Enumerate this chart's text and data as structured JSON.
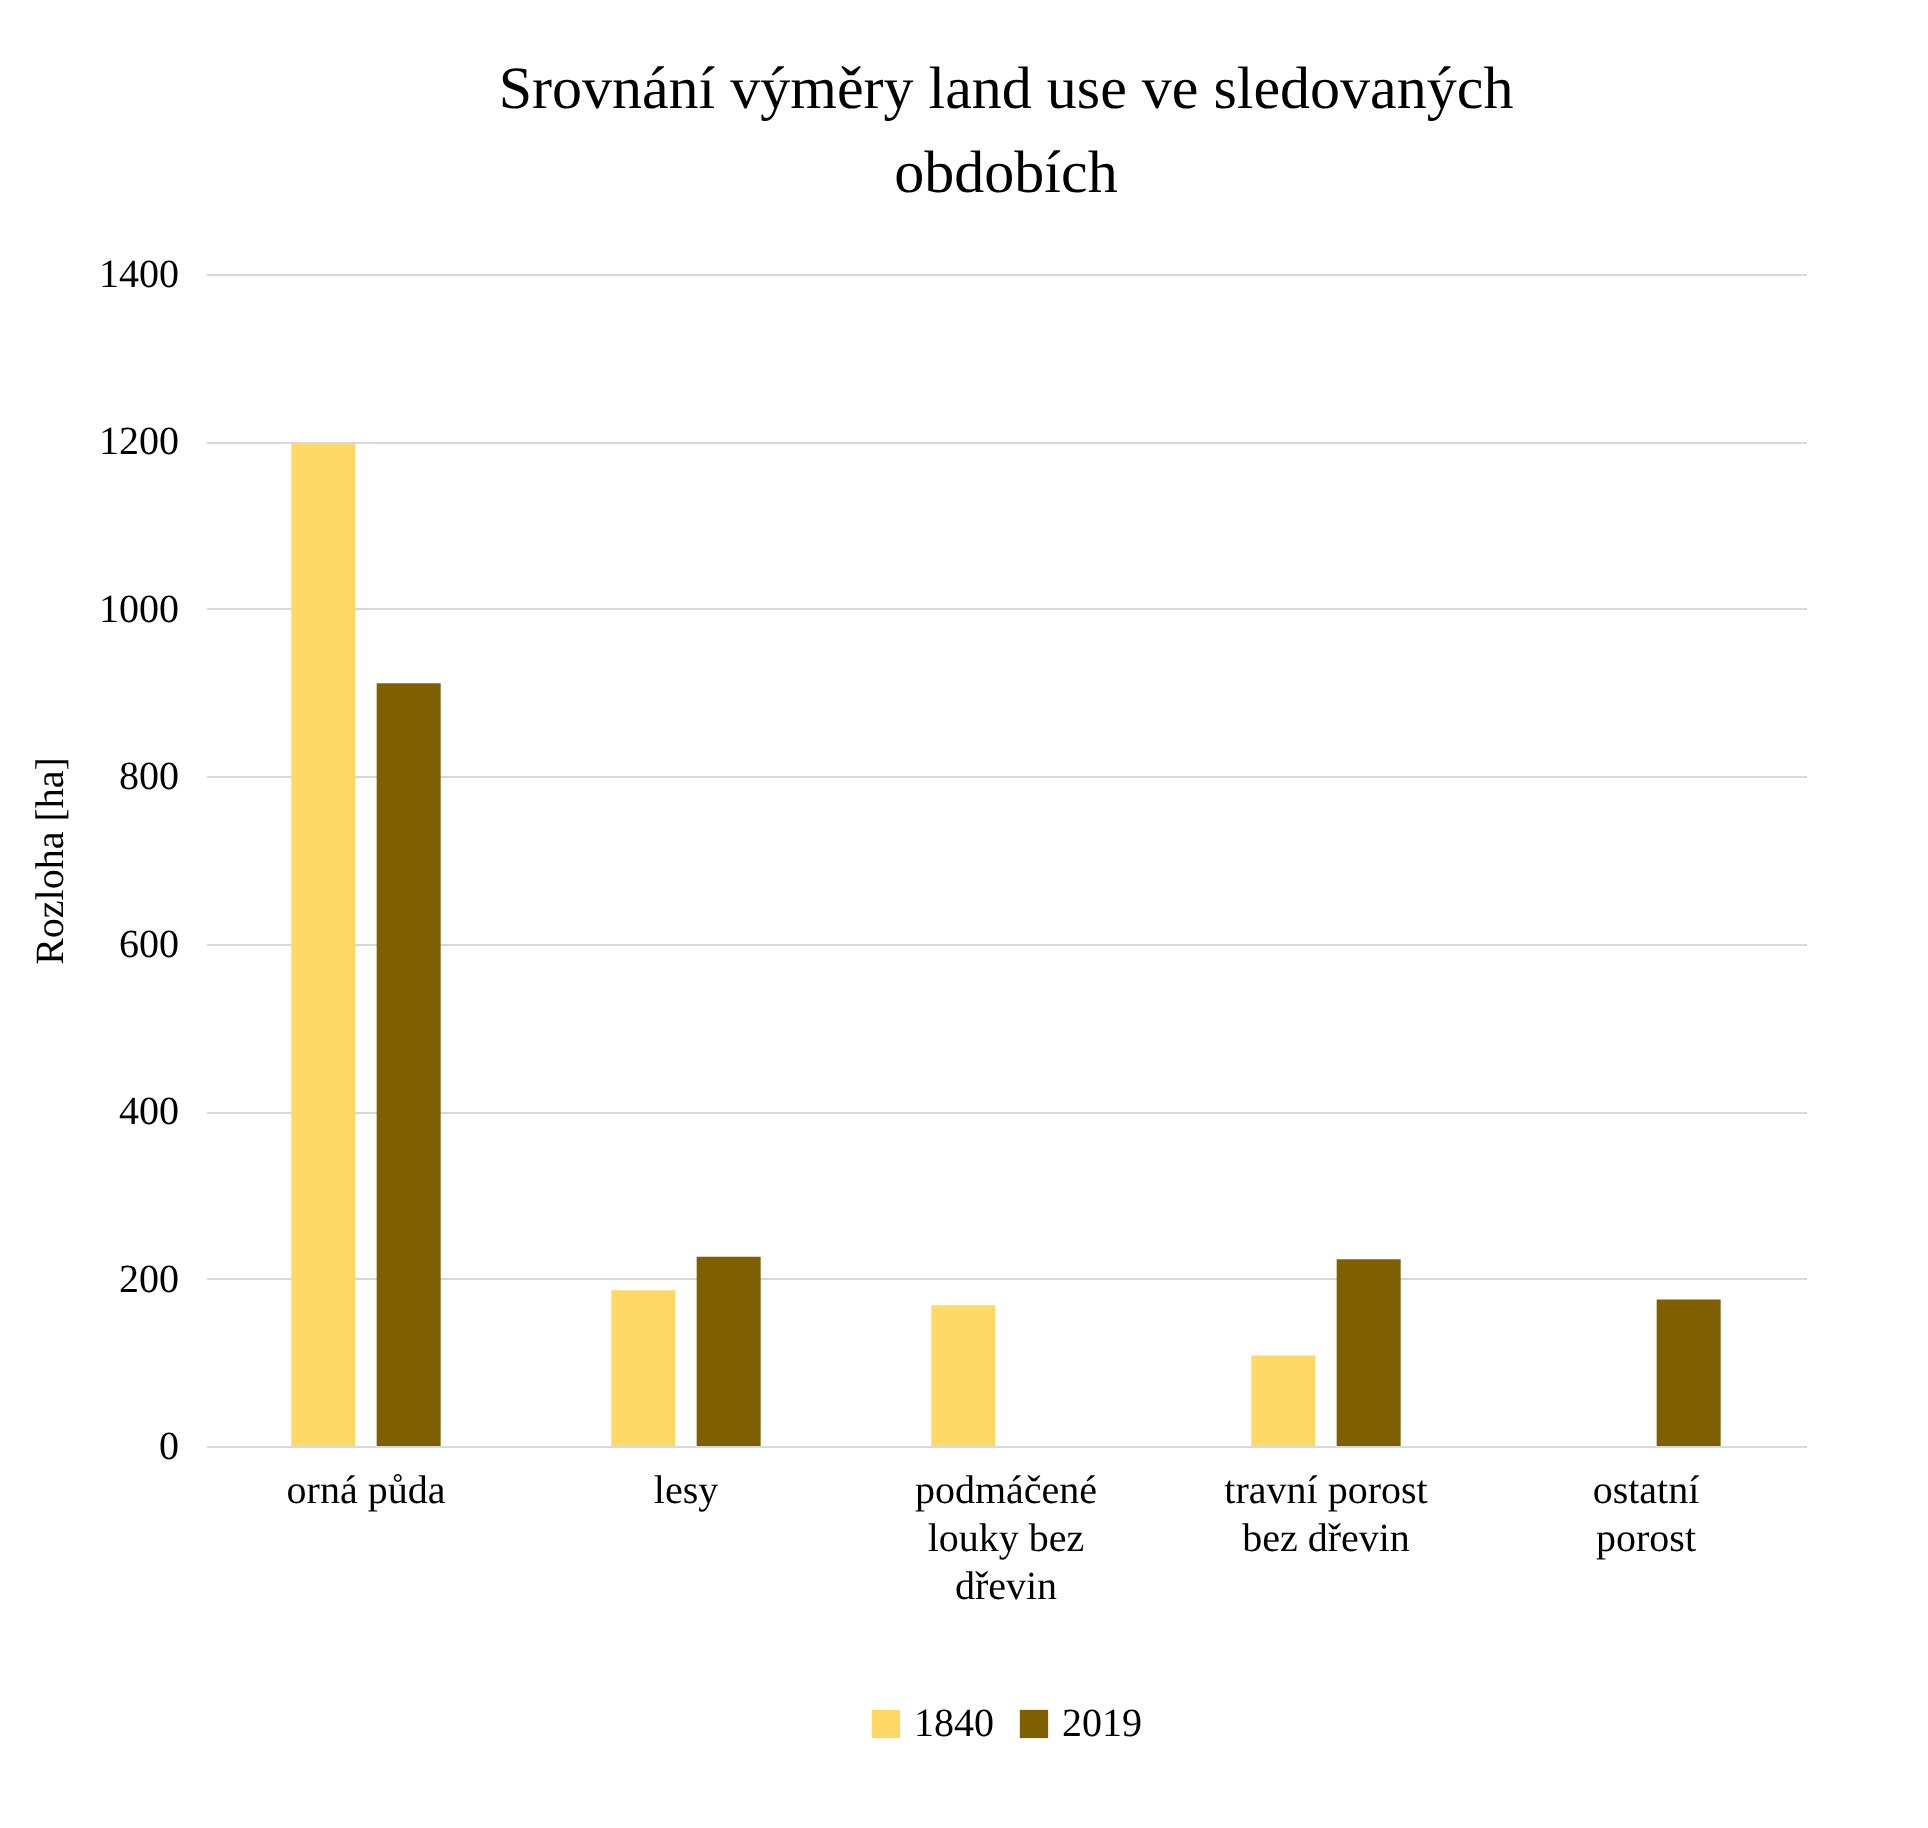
{
  "chart_data": {
    "type": "bar",
    "title": "Srovnání výměry land use ve sledovaných obdobích",
    "ylabel": "Rozloha [ha]",
    "categories": [
      "orná půda",
      "lesy",
      "podmáčené louky bez dřevin",
      "travní porost bez dřevin",
      "ostatní porost"
    ],
    "series": [
      {
        "name": "1840",
        "color": "#ffd966",
        "values": [
          1198,
          186,
          168,
          108,
          0
        ]
      },
      {
        "name": "2019",
        "color": "#7f6000",
        "values": [
          911,
          226,
          0,
          223,
          175
        ]
      }
    ],
    "ylim": [
      0,
      1400
    ],
    "yticks": [
      0,
      200,
      400,
      600,
      800,
      1000,
      1200,
      1400
    ],
    "grid": "y",
    "legend": "bottom"
  }
}
